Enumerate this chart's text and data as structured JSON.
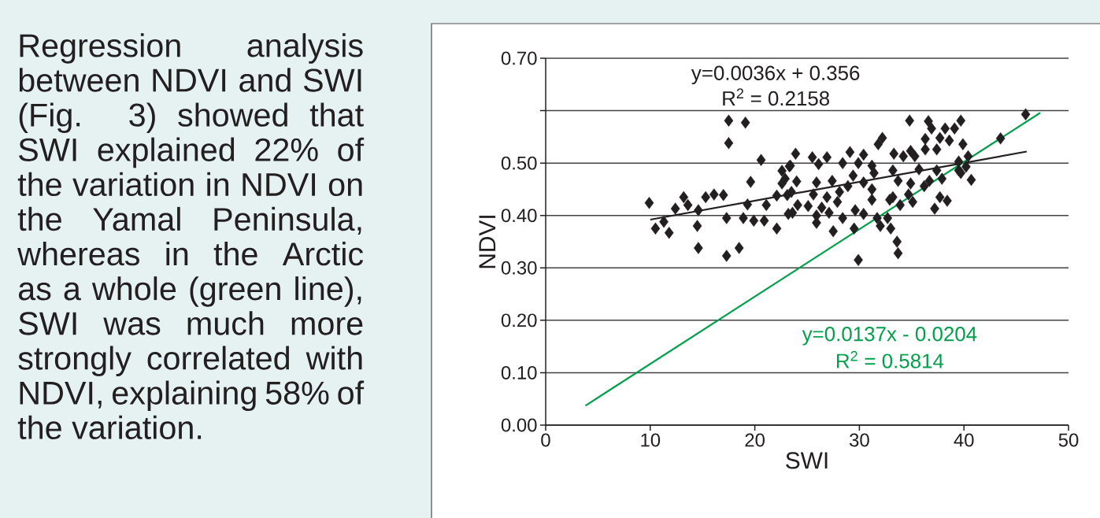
{
  "chart_data": {
    "type": "scatter",
    "xlabel": "SWI",
    "ylabel": "NDVI",
    "annotations": [
      "Regression analysis between NDVI and SWI (Fig. 3) showed that SWI explained 22% of the variation in NDVI on the Yamal Peninsula, whereas in the Arctic as a whole (green line), SWI was much more strongly correlated with NDVI, explaining 58% of the variation.",
      "y=0.0036x + 0.356",
      "R$^{2}$ = 0.2158",
      "y=0.0137x - 0.0204",
      "R$^{2}$ = 0.5814"
    ],
    "xlim": [
      0,
      50
    ],
    "ylim": [
      0,
      0.7
    ],
    "xticks": [
      0,
      10,
      20,
      30,
      40,
      50
    ],
    "yticks": [
      {
        "value": 0,
        "label": "0.00"
      },
      {
        "value": 0.1,
        "label": "0.10"
      },
      {
        "value": 0.2,
        "label": "0.20"
      },
      {
        "value": 0.3,
        "label": "0.30"
      },
      {
        "value": 0.4,
        "label": "0.40"
      },
      {
        "value": 0.5,
        "label": "0.50"
      },
      {
        "value": 0.6,
        "label": null
      },
      {
        "value": 0.7,
        "label": "0.70"
      }
    ],
    "grid": "y",
    "series": [
      {
        "marker": "diamond",
        "color": "#231f20",
        "x": [
          9.9,
          17.5,
          19.1,
          17.5,
          23.9,
          20.6,
          23.3,
          22.6,
          22.9,
          24.0,
          19.6,
          22.6,
          17.0,
          16.1,
          15.3,
          13.2,
          13.6,
          12.4,
          14.6,
          19.3,
          21.1,
          22.1,
          23.1,
          17.3,
          18.9,
          19.9,
          20.9,
          23.2,
          11.3,
          10.5,
          11.8,
          14.5,
          22.1,
          14.6,
          18.5,
          17.3,
          45.9,
          34.8,
          36.6,
          39.7,
          38.2,
          39.1,
          36.9,
          43.5,
          32.2,
          36.3,
          37.7,
          38.6,
          39.9,
          31.8,
          36.3,
          37.4,
          25.5,
          26.9,
          29.1,
          30.4,
          33.3,
          34.9,
          35.3,
          34.2,
          40.4,
          39.5,
          26.1,
          28.4,
          29.9,
          31.2,
          23.4,
          33.2,
          35.7,
          37.4,
          39.5,
          40.2,
          40.7,
          39.7,
          29.4,
          31.4,
          25.9,
          27.4,
          28.9,
          30.4,
          33.7,
          34.9,
          36.7,
          37.9,
          23.5,
          25.6,
          26.9,
          28.1,
          31.2,
          33.2,
          34.7,
          36.2,
          37.7,
          38.4,
          24.1,
          25.1,
          26.4,
          27.9,
          31.2,
          32.9,
          33.9,
          35.1,
          37.2,
          23.6,
          25.9,
          27.1,
          28.4,
          29.6,
          30.4,
          31.7,
          32.7,
          25.9,
          27.5,
          29.5,
          32.0,
          33.0,
          33.6,
          33.7,
          29.9
        ],
        "values": [
          0.424,
          0.581,
          0.577,
          0.538,
          0.518,
          0.506,
          0.494,
          0.485,
          0.47,
          0.465,
          0.464,
          0.461,
          0.439,
          0.44,
          0.435,
          0.435,
          0.42,
          0.413,
          0.41,
          0.421,
          0.42,
          0.438,
          0.439,
          0.395,
          0.395,
          0.39,
          0.39,
          0.403,
          0.388,
          0.375,
          0.367,
          0.38,
          0.375,
          0.338,
          0.338,
          0.323,
          0.593,
          0.581,
          0.58,
          0.581,
          0.566,
          0.566,
          0.566,
          0.547,
          0.548,
          0.546,
          0.548,
          0.543,
          0.536,
          0.536,
          0.526,
          0.526,
          0.511,
          0.511,
          0.521,
          0.516,
          0.518,
          0.523,
          0.513,
          0.513,
          0.513,
          0.503,
          0.498,
          0.5,
          0.5,
          0.495,
          0.495,
          0.486,
          0.488,
          0.486,
          0.486,
          0.493,
          0.468,
          0.481,
          0.476,
          0.481,
          0.463,
          0.466,
          0.456,
          0.463,
          0.466,
          0.461,
          0.466,
          0.47,
          0.445,
          0.44,
          0.435,
          0.445,
          0.45,
          0.435,
          0.44,
          0.456,
          0.435,
          0.428,
          0.42,
          0.418,
          0.415,
          0.426,
          0.43,
          0.43,
          0.42,
          0.426,
          0.413,
          0.405,
          0.4,
          0.405,
          0.395,
          0.41,
          0.403,
          0.395,
          0.395,
          0.386,
          0.37,
          0.375,
          0.38,
          0.375,
          0.35,
          0.328,
          0.315
        ]
      },
      {
        "type": "line",
        "marker": "none",
        "color": "#231f20",
        "x": [
          10,
          46
        ],
        "values": [
          0.392,
          0.522
        ]
      },
      {
        "type": "line",
        "marker": "none",
        "color": "#00a04b",
        "x": [
          3.8,
          47.3
        ],
        "values": [
          0.037,
          0.596
        ]
      }
    ]
  }
}
